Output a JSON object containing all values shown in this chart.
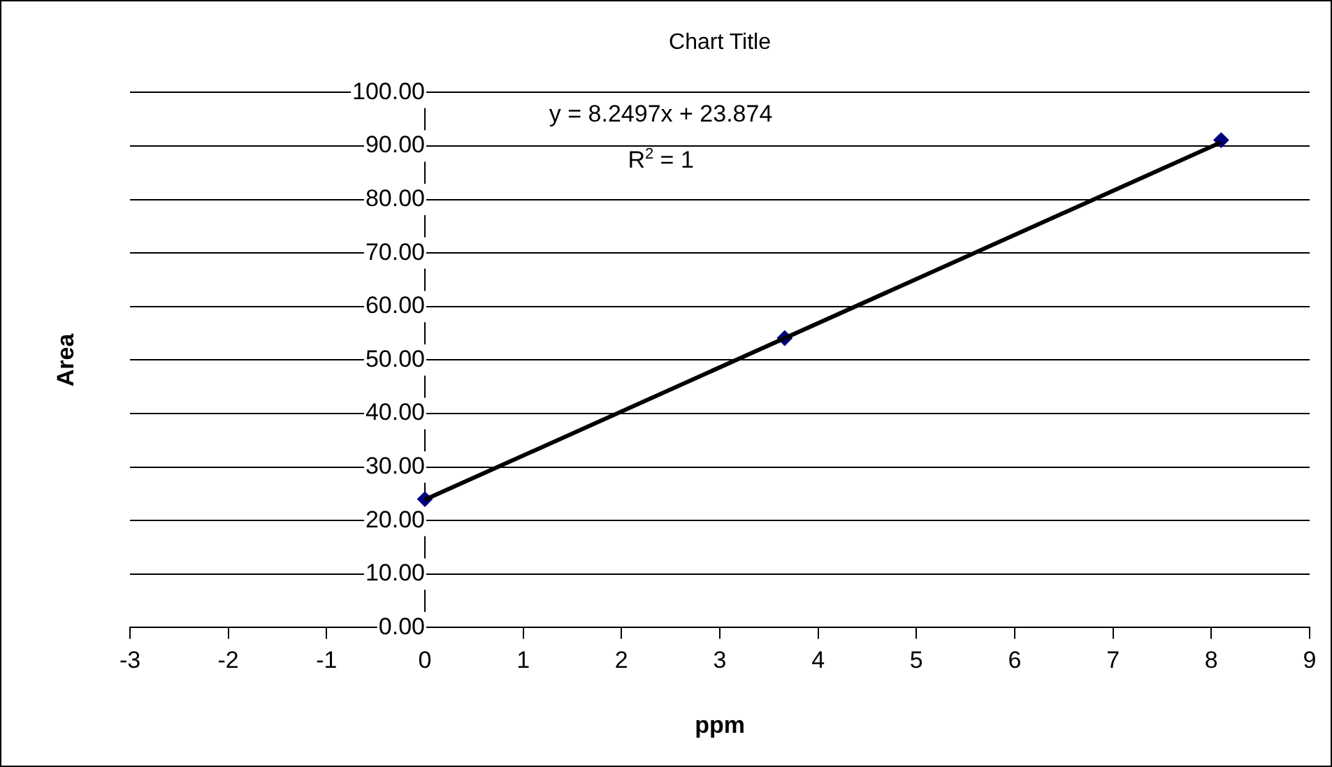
{
  "chart_data": {
    "type": "scatter",
    "title": "Chart Title",
    "xlabel": "ppm",
    "ylabel": "Area",
    "xlim": [
      -3,
      9
    ],
    "xticks": [
      -3,
      -2,
      -1,
      0,
      1,
      2,
      3,
      4,
      5,
      6,
      7,
      8,
      9
    ],
    "ylim": [
      0,
      100
    ],
    "yticks": [
      {
        "value": 0,
        "label": "0.00"
      },
      {
        "value": 10,
        "label": "10.00"
      },
      {
        "value": 20,
        "label": "20.00"
      },
      {
        "value": 30,
        "label": "30.00"
      },
      {
        "value": 40,
        "label": "40.00"
      },
      {
        "value": 50,
        "label": "50.00"
      },
      {
        "value": 60,
        "label": "60.00"
      },
      {
        "value": 70,
        "label": "70.00"
      },
      {
        "value": 80,
        "label": "80.00"
      },
      {
        "value": 90,
        "label": "90.00"
      },
      {
        "value": 100,
        "label": "100.00"
      }
    ],
    "grid": "y",
    "legend": false,
    "series": [
      {
        "type": "line",
        "marker": "none",
        "color": "#000000",
        "x": [
          0,
          8.1
        ],
        "values": [
          23.9,
          90.7
        ]
      },
      {
        "marker": "diamond",
        "color": "#000080",
        "x": [
          0,
          3.66,
          8.1
        ],
        "values": [
          24.0,
          54.1,
          91.1
        ]
      }
    ],
    "annotations": [
      "y = 8.2497x + 23.874",
      "R$^{2}$ = 1"
    ]
  }
}
